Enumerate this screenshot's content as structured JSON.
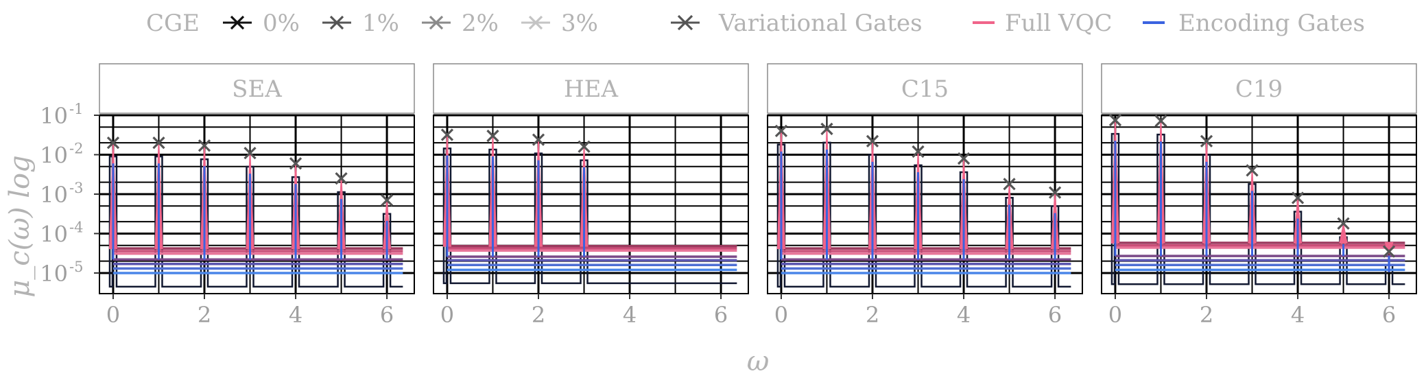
{
  "legend": {
    "cge_title": "CGE",
    "cge_levels": [
      {
        "label": "0%",
        "color": "#111111"
      },
      {
        "label": "1%",
        "color": "#555555"
      },
      {
        "label": "2%",
        "color": "#8a8a8a"
      },
      {
        "label": "3%",
        "color": "#c4c4c4"
      }
    ],
    "variational_label": "Variational Gates",
    "full_vqc_label": "Full VQC",
    "encoding_label": "Encoding Gates"
  },
  "colors": {
    "full_vqc": "#f0648a",
    "encoding": "#3b63e0",
    "variational_marker": "#555555",
    "encoding_darkest": "#111830",
    "grid": "#000000"
  },
  "chart_data": {
    "type": "line",
    "xlabel": "ω",
    "ylabel": "μ_c(ω) log",
    "y_scale": "log",
    "ylim": [
      3e-06,
      0.1
    ],
    "xlim": [
      -0.3,
      6.6
    ],
    "x_ticks": [
      0,
      2,
      4,
      6
    ],
    "x_tick_labels": [
      "0",
      "2",
      "4",
      "6"
    ],
    "y_ticks": [
      0.1,
      0.01,
      0.001,
      0.0001,
      1e-05
    ],
    "y_tick_labels": [
      "10",
      "10",
      "10",
      "10",
      "10"
    ],
    "y_tick_exponents": [
      "-1",
      "-2",
      "-3",
      "-4",
      "-5"
    ],
    "grid": true,
    "legend_position": "top",
    "panels": [
      {
        "title": "SEA",
        "frequencies": [
          0,
          1,
          2,
          3,
          4,
          5,
          6
        ],
        "variational_gates": [
          0.02,
          0.02,
          0.017,
          0.011,
          0.006,
          0.0025,
          0.0007
        ],
        "floor_full_vqc": [
          4.2e-05,
          3.6e-05,
          3.1e-05
        ],
        "floor_encoding": [
          2.2e-05,
          1.7e-05,
          1.3e-05,
          1e-05
        ],
        "floor_darkest": 4.5e-06
      },
      {
        "title": "HEA",
        "frequencies": [
          0,
          1,
          2,
          3
        ],
        "variational_gates": [
          0.032,
          0.03,
          0.024,
          0.016
        ],
        "floor_full_vqc": [
          4.8e-05,
          4.2e-05,
          3.7e-05
        ],
        "floor_encoding": [
          2.6e-05,
          2.1e-05,
          1.6e-05,
          1.2e-05
        ],
        "floor_darkest": 5.5e-06
      },
      {
        "title": "C15",
        "frequencies": [
          0,
          1,
          2,
          3,
          4,
          5,
          6
        ],
        "variational_gates": [
          0.04,
          0.045,
          0.022,
          0.012,
          0.008,
          0.0018,
          0.0011
        ],
        "floor_full_vqc": [
          4.2e-05,
          3.6e-05,
          3.1e-05
        ],
        "floor_encoding": [
          2.2e-05,
          1.7e-05,
          1.3e-05,
          1e-05
        ],
        "floor_darkest": 4.5e-06
      },
      {
        "title": "C19",
        "frequencies": [
          0,
          1,
          2,
          3,
          4,
          5,
          6
        ],
        "variational_gates": [
          0.075,
          0.072,
          0.022,
          0.004,
          0.0008,
          0.00018,
          3.5e-05
        ],
        "floor_full_vqc": [
          5.8e-05,
          5e-05,
          4.4e-05
        ],
        "floor_encoding": [
          2.7e-05,
          2.1e-05,
          1.6e-05,
          1.2e-05
        ],
        "floor_darkest": 5.2e-06
      }
    ]
  }
}
